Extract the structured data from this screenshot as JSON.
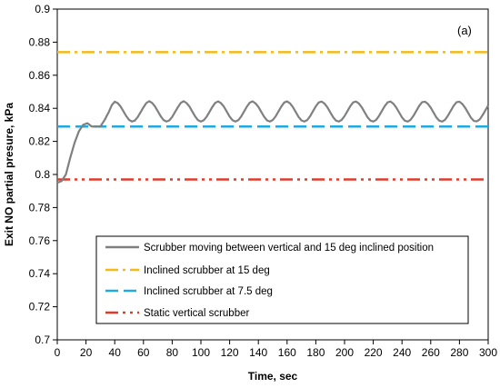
{
  "chart_data": {
    "type": "line",
    "panel_label": "(a)",
    "xlabel": "Time, sec",
    "ylabel": "Exit NO partial presure, kPa",
    "xlim": [
      0,
      300
    ],
    "ylim": [
      0.7,
      0.9
    ],
    "xticks": [
      "0",
      "20",
      "40",
      "60",
      "80",
      "100",
      "120",
      "140",
      "160",
      "180",
      "200",
      "220",
      "240",
      "260",
      "280",
      "300"
    ],
    "yticks": [
      "0.7",
      "0.72",
      "0.74",
      "0.76",
      "0.78",
      "0.8",
      "0.82",
      "0.84",
      "0.86",
      "0.88",
      "0.9"
    ],
    "grid": false,
    "legend_position": "bottom-right",
    "series": [
      {
        "name": "Scrubber moving between vertical and 15 deg inclined position",
        "color": "#808080",
        "style": "solid",
        "x": [
          0,
          3,
          6,
          9,
          12,
          15,
          18,
          21,
          24,
          27,
          30,
          33,
          36,
          38,
          40,
          42,
          44,
          46,
          48,
          50,
          52,
          54,
          56,
          58,
          60,
          62,
          64,
          66,
          68,
          70,
          72,
          74,
          76,
          78,
          80,
          82,
          84,
          86,
          88,
          90,
          92,
          94,
          96,
          98,
          100,
          102,
          104,
          106,
          108,
          110,
          112,
          114,
          116,
          118,
          120,
          122,
          124,
          126,
          128,
          130,
          132,
          134,
          136,
          138,
          140,
          142,
          144,
          146,
          148,
          150,
          152,
          154,
          156,
          158,
          160,
          162,
          164,
          166,
          168,
          170,
          172,
          174,
          176,
          178,
          180,
          182,
          184,
          186,
          188,
          190,
          192,
          194,
          196,
          198,
          200,
          202,
          204,
          206,
          208,
          210,
          212,
          214,
          216,
          218,
          220,
          222,
          224,
          226,
          228,
          230,
          232,
          234,
          236,
          238,
          240,
          242,
          244,
          246,
          248,
          250,
          252,
          254,
          256,
          258,
          260,
          262,
          264,
          266,
          268,
          270,
          272,
          274,
          276,
          278,
          280,
          282,
          284,
          286,
          288,
          290,
          292,
          294,
          296,
          298,
          300
        ],
        "y": [
          0.795,
          0.796,
          0.8,
          0.81,
          0.819,
          0.826,
          0.83,
          0.831,
          0.829,
          0.829,
          0.829,
          0.833,
          0.838,
          0.842,
          0.844,
          0.8432,
          0.8412,
          0.8383,
          0.8353,
          0.833,
          0.832,
          0.8326,
          0.8347,
          0.8376,
          0.8406,
          0.8432,
          0.8443,
          0.8433,
          0.8412,
          0.8382,
          0.8352,
          0.8329,
          0.832,
          0.8327,
          0.8348,
          0.8378,
          0.8407,
          0.8433,
          0.8443,
          0.8432,
          0.8411,
          0.8381,
          0.8351,
          0.8328,
          0.832,
          0.8328,
          0.8349,
          0.8379,
          0.8409,
          0.8433,
          0.8442,
          0.8431,
          0.841,
          0.838,
          0.835,
          0.8328,
          0.832,
          0.8328,
          0.835,
          0.838,
          0.841,
          0.8434,
          0.8442,
          0.843,
          0.8409,
          0.8379,
          0.8349,
          0.8327,
          0.832,
          0.8329,
          0.8351,
          0.8381,
          0.8411,
          0.8435,
          0.8442,
          0.843,
          0.8408,
          0.8378,
          0.8348,
          0.8327,
          0.832,
          0.8329,
          0.8352,
          0.8382,
          0.8412,
          0.8435,
          0.8441,
          0.8429,
          0.8407,
          0.8377,
          0.8347,
          0.8326,
          0.832,
          0.833,
          0.8353,
          0.8383,
          0.8413,
          0.8436,
          0.8441,
          0.8429,
          0.8406,
          0.8376,
          0.8346,
          0.8326,
          0.832,
          0.833,
          0.8354,
          0.8384,
          0.8414,
          0.8436,
          0.8441,
          0.8428,
          0.8405,
          0.8375,
          0.8345,
          0.8325,
          0.832,
          0.8331,
          0.8355,
          0.8385,
          0.8415,
          0.8437,
          0.844,
          0.8427,
          0.8404,
          0.8374,
          0.8344,
          0.8325,
          0.832,
          0.8331,
          0.8356,
          0.8386,
          0.8416,
          0.8437,
          0.844,
          0.8426,
          0.8403,
          0.8373,
          0.8343,
          0.8324,
          0.8321,
          0.8332,
          0.8357,
          0.8387,
          0.8417
        ]
      },
      {
        "name": "Inclined scrubber at 15 deg",
        "color": "#F2BB17",
        "style": "dashdot",
        "x": [
          0,
          300
        ],
        "y": [
          0.874,
          0.874
        ]
      },
      {
        "name": "Inclined scrubber at 7.5 deg",
        "color": "#21A9E1",
        "style": "dashed",
        "x": [
          0,
          300
        ],
        "y": [
          0.829,
          0.829
        ]
      },
      {
        "name": "Static vertical scrubber",
        "color": "#E03B2A",
        "style": "dashdotdot",
        "x": [
          0,
          300
        ],
        "y": [
          0.797,
          0.797
        ]
      }
    ]
  }
}
